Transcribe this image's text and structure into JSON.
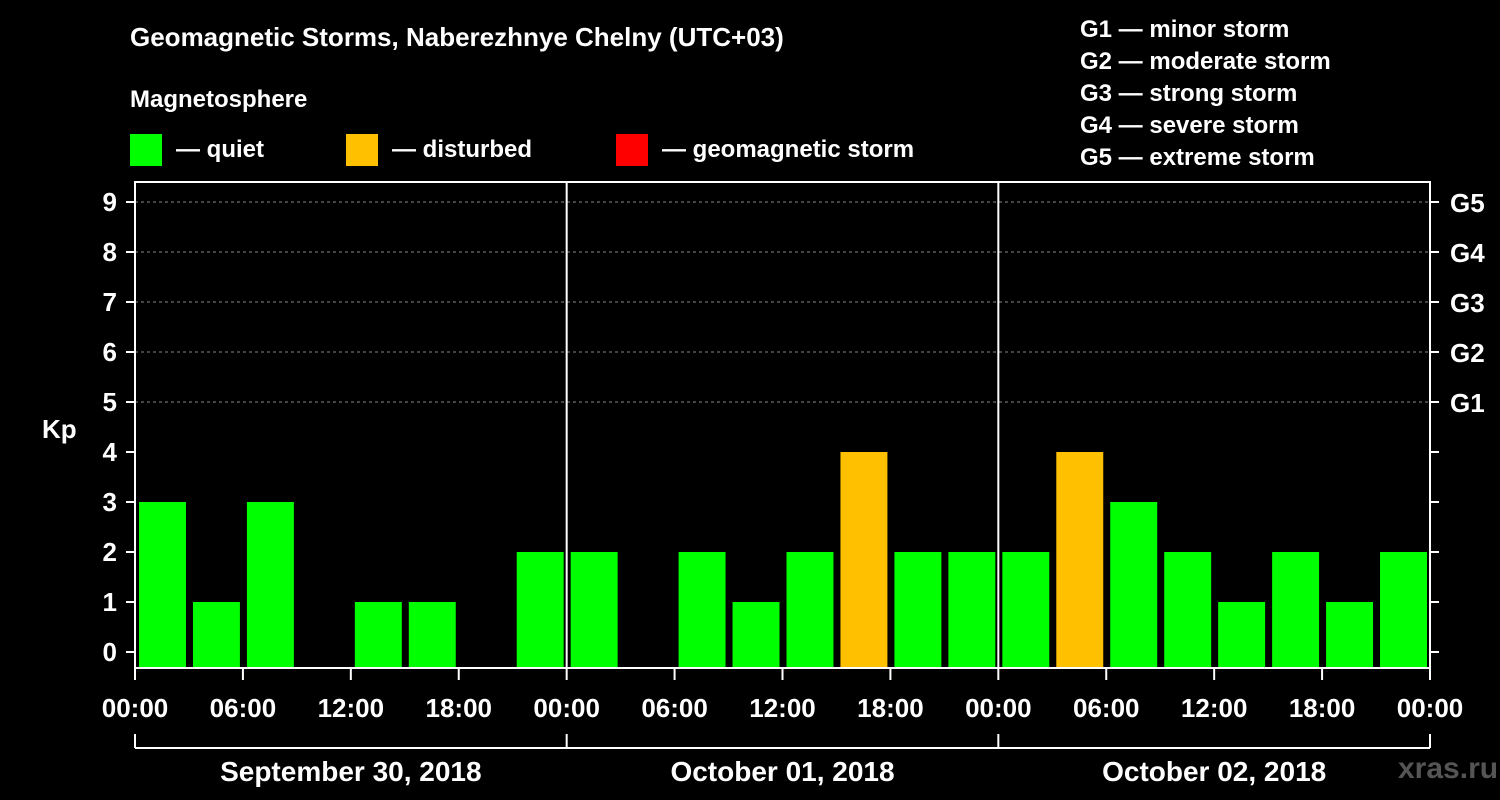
{
  "title": "Geomagnetic Storms, Naberezhnye Chelny (UTC+03)",
  "subtitle": "Magnetosphere",
  "legend": [
    {
      "label": "— quiet",
      "color": "#00ff00"
    },
    {
      "label": "— disturbed",
      "color": "#ffc000"
    },
    {
      "label": "— geomagnetic storm",
      "color": "#ff0000"
    }
  ],
  "g_scale": [
    "G1 — minor storm",
    "G2 — moderate storm",
    "G3 — strong storm",
    "G4 — severe storm",
    "G5 — extreme storm"
  ],
  "watermark": "xras.ru",
  "chart_data": {
    "type": "bar",
    "ylabel": "Kp",
    "ylim": [
      0,
      9
    ],
    "y_ticks": [
      0,
      1,
      2,
      3,
      4,
      5,
      6,
      7,
      8,
      9
    ],
    "right_labels": [
      {
        "kp": 5,
        "label": "G1"
      },
      {
        "kp": 6,
        "label": "G2"
      },
      {
        "kp": 7,
        "label": "G3"
      },
      {
        "kp": 8,
        "label": "G4"
      },
      {
        "kp": 9,
        "label": "G5"
      }
    ],
    "x_tick_labels": [
      "00:00",
      "06:00",
      "12:00",
      "18:00",
      "00:00",
      "06:00",
      "12:00",
      "18:00",
      "00:00",
      "06:00",
      "12:00",
      "18:00",
      "00:00"
    ],
    "days": [
      "September 30, 2018",
      "October 01, 2018",
      "October 02, 2018"
    ],
    "values": [
      3,
      1,
      3,
      0,
      1,
      1,
      0,
      2,
      2,
      0,
      2,
      1,
      2,
      4,
      2,
      2,
      2,
      4,
      3,
      2,
      1,
      2,
      1,
      2
    ],
    "colors": [
      "#00ff00",
      "#00ff00",
      "#00ff00",
      "#00ff00",
      "#00ff00",
      "#00ff00",
      "#00ff00",
      "#00ff00",
      "#00ff00",
      "#00ff00",
      "#00ff00",
      "#00ff00",
      "#00ff00",
      "#ffc000",
      "#00ff00",
      "#00ff00",
      "#00ff00",
      "#ffc000",
      "#00ff00",
      "#00ff00",
      "#00ff00",
      "#00ff00",
      "#00ff00",
      "#00ff00"
    ]
  }
}
